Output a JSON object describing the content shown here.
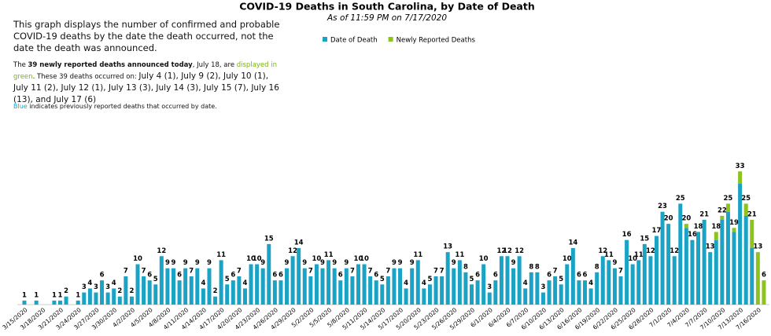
{
  "chart_data": {
    "type": "stacked_bar",
    "title": "COVID-19 Deaths in South Carolina, by Date of Death",
    "subtitle": "As of 11:59 PM on 7/17/2020",
    "notes": {
      "intro": "This graph displays the number of confirmed and probable COVID-19 deaths by the date the death occurred, not the date the death was announced.",
      "newly": [
        "The ",
        "39 newly reported deaths announced today",
        ", July 18, are ",
        "displayed in green",
        ". These 39 deaths occurred on: ",
        "July 4 (1), July 9 (2), July 10 (1), July 11 (2), July 12 (1), July 13 (3), July 14 (3),  July 15 (7), July 16 (13), and July 17 (6)"
      ],
      "blue": [
        "Blue",
        " indicates previously reported deaths that occurred by date."
      ]
    },
    "categories": [
      "3/15/2020",
      null,
      null,
      "3/18/2020",
      null,
      null,
      "3/21/2020",
      null,
      null,
      "3/24/2020",
      null,
      null,
      "3/27/2020",
      null,
      null,
      "3/30/2020",
      null,
      null,
      "4/2/2020",
      null,
      null,
      "4/5/2020",
      null,
      null,
      "4/8/2020",
      null,
      null,
      "4/11/2020",
      null,
      null,
      "4/14/2020",
      null,
      null,
      "4/17/2020",
      null,
      null,
      "4/20/2020",
      null,
      null,
      "4/23/2020",
      null,
      null,
      "4/26/2020",
      null,
      null,
      "4/29/2020",
      null,
      null,
      "5/2/2020",
      null,
      null,
      "5/5/2020",
      null,
      null,
      "5/8/2020",
      null,
      null,
      "5/11/2020",
      null,
      null,
      "5/14/2020",
      null,
      null,
      "5/17/2020",
      null,
      null,
      "5/20/2020",
      null,
      null,
      "5/23/2020",
      null,
      null,
      "5/26/2020",
      null,
      null,
      "5/29/2020",
      null,
      null,
      "6/1/2020",
      null,
      null,
      "6/4/2020",
      null,
      null,
      "6/7/2020",
      null,
      null,
      "6/10/2020",
      null,
      null,
      "6/13/2020",
      null,
      null,
      "6/16/2020",
      null,
      null,
      "6/19/2020",
      null,
      null,
      "6/22/2020",
      null,
      null,
      "6/25/2020",
      null,
      null,
      "6/28/2020",
      null,
      null,
      "7/1/2020",
      null,
      null,
      "7/4/2020",
      null,
      null,
      "7/7/2020",
      null,
      null,
      "7/10/2020",
      null,
      null,
      "7/13/2020",
      null,
      null,
      "7/16/2020",
      null
    ],
    "series": [
      {
        "name": "Date of Death",
        "color": "#1ba3c6",
        "values": [
          1,
          0,
          1,
          0,
          0,
          1,
          1,
          2,
          0,
          1,
          3,
          4,
          3,
          6,
          3,
          4,
          2,
          7,
          2,
          10,
          7,
          6,
          5,
          12,
          9,
          9,
          6,
          9,
          7,
          9,
          4,
          9,
          2,
          11,
          5,
          6,
          7,
          4,
          10,
          10,
          9,
          15,
          6,
          6,
          9,
          12,
          14,
          9,
          7,
          10,
          9,
          11,
          9,
          6,
          9,
          7,
          10,
          10,
          7,
          6,
          5,
          7,
          9,
          9,
          4,
          9,
          11,
          4,
          5,
          7,
          7,
          13,
          9,
          11,
          8,
          5,
          6,
          10,
          3,
          6,
          12,
          12,
          9,
          12,
          4,
          8,
          8,
          3,
          6,
          7,
          5,
          10,
          14,
          6,
          6,
          4,
          8,
          12,
          11,
          9,
          7,
          16,
          10,
          11,
          15,
          12,
          17,
          23,
          20,
          12,
          25,
          19,
          16,
          18,
          21,
          13,
          16,
          21,
          23,
          18,
          30,
          22,
          14,
          0,
          0
        ]
      },
      {
        "name": "Newly Reported Deaths",
        "color": "#8dc21f",
        "values": [
          0,
          0,
          0,
          0,
          0,
          0,
          0,
          0,
          0,
          0,
          0,
          0,
          0,
          0,
          0,
          0,
          0,
          0,
          0,
          0,
          0,
          0,
          0,
          0,
          0,
          0,
          0,
          0,
          0,
          0,
          0,
          0,
          0,
          0,
          0,
          0,
          0,
          0,
          0,
          0,
          0,
          0,
          0,
          0,
          0,
          0,
          0,
          0,
          0,
          0,
          0,
          0,
          0,
          0,
          0,
          0,
          0,
          0,
          0,
          0,
          0,
          0,
          0,
          0,
          0,
          0,
          0,
          0,
          0,
          0,
          0,
          0,
          0,
          0,
          0,
          0,
          0,
          0,
          0,
          0,
          0,
          0,
          0,
          0,
          0,
          0,
          0,
          0,
          0,
          0,
          0,
          0,
          0,
          0,
          0,
          0,
          0,
          0,
          0,
          0,
          0,
          0,
          0,
          0,
          0,
          0,
          0,
          0,
          0,
          0,
          0,
          1,
          0,
          0,
          0,
          0,
          2,
          1,
          2,
          1,
          3,
          3,
          7,
          13,
          6
        ]
      }
    ],
    "total_labels": [
      "1",
      null,
      "1",
      null,
      null,
      "1",
      "1",
      "2",
      null,
      "1",
      "3",
      "4",
      "3",
      "6",
      "3",
      "4",
      "2",
      "7",
      "2",
      "10",
      "7",
      "6",
      "5",
      "12",
      "9",
      "9",
      "6",
      "9",
      "7",
      "9",
      "4",
      "9",
      "2",
      "11",
      "5",
      "6",
      "7",
      "4",
      "10",
      "10",
      "9",
      "15",
      "6",
      "6",
      "9",
      "12",
      "14",
      "9",
      "7",
      "10",
      "9",
      "11",
      "9",
      "6",
      "9",
      "7",
      "10",
      "10",
      "7",
      "6",
      "5",
      "7",
      "9",
      "9",
      "4",
      "9",
      "11",
      "4",
      "5",
      "7",
      "7",
      "13",
      "9",
      "11",
      "8",
      "5",
      "6",
      "10",
      "3",
      "6",
      "12",
      "12",
      "9",
      "12",
      "4",
      "8",
      "8",
      "3",
      "6",
      "7",
      "5",
      "10",
      "14",
      "6",
      "6",
      "4",
      "8",
      "12",
      "11",
      "9",
      "7",
      "16",
      "10",
      "11",
      "15",
      "12",
      "17",
      "23",
      "20",
      "12",
      "25",
      "20",
      "16",
      "18",
      "21",
      "13",
      "18",
      "22",
      "25",
      "19",
      "33",
      "25",
      "21",
      "13",
      "6"
    ],
    "ylim": [
      0,
      35
    ]
  }
}
